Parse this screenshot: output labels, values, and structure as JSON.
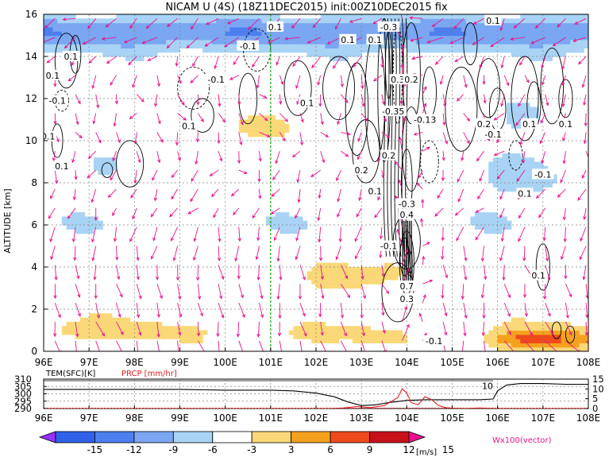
{
  "title": "NICAM U (4S) (18Z11DEC2015) init:00Z10DEC2015 fix",
  "colors": {
    "background": "#ffffff",
    "vector": "#e8128c",
    "contour": "#000000",
    "marker_line": "#22aa22",
    "temperature_line": "#000000",
    "precip_line": "#e02020"
  },
  "chart_data": [
    {
      "type": "heatmap",
      "name": "zonal-wind-cross-section",
      "ylabel": "ALTITUDE [km]",
      "x_ticks": [
        "96E",
        "97E",
        "98E",
        "99E",
        "100E",
        "101E",
        "102E",
        "103E",
        "104E",
        "105E",
        "106E",
        "107E",
        "108E"
      ],
      "y_ticks": [
        "0",
        "2",
        "4",
        "6",
        "8",
        "10",
        "12",
        "14",
        "16"
      ],
      "xlim": [
        96,
        108
      ],
      "ylim": [
        0,
        16
      ],
      "grid": true,
      "marker_lon": 101,
      "color_levels": [
        -15,
        -12,
        -9,
        -6,
        -3,
        3,
        6,
        9,
        12,
        15
      ],
      "colorbar_labels": [
        "-15",
        "-12",
        "-9",
        "-6",
        "-3",
        "3",
        "6",
        "9",
        "12",
        "15"
      ],
      "colorbar_colors": [
        "#9b30ff",
        "#2f62e8",
        "#4d7fee",
        "#7aa6f2",
        "#a8d3f5",
        "#ffffff",
        "#fad878",
        "#f4a21e",
        "#ef4a1c",
        "#c8101a",
        "#e8128c"
      ],
      "colorbar_unit": "[m/s]",
      "vector_legend": "Wx100(vector)",
      "contour_labels": [
        {
          "text": "0.1",
          "lon": 96.6,
          "alt": 14.0
        },
        {
          "text": "0.1",
          "lon": 96.2,
          "alt": 13.1
        },
        {
          "text": "-0.1",
          "lon": 96.3,
          "alt": 11.9
        },
        {
          "text": "0.1",
          "lon": 96.1,
          "alt": 10.2
        },
        {
          "text": "0.1",
          "lon": 96.4,
          "alt": 8.8
        },
        {
          "text": "-0.1",
          "lon": 99.8,
          "alt": 12.9
        },
        {
          "text": "0.1",
          "lon": 99.2,
          "alt": 10.7
        },
        {
          "text": "0.1",
          "lon": 101.1,
          "alt": 15.4
        },
        {
          "text": "-0.1",
          "lon": 100.5,
          "alt": 14.5
        },
        {
          "text": "0.1",
          "lon": 101.8,
          "alt": 11.8
        },
        {
          "text": "0.1",
          "lon": 102.7,
          "alt": 14.8
        },
        {
          "text": "0.1",
          "lon": 103.3,
          "alt": 14.8
        },
        {
          "text": "-0.3",
          "lon": 103.6,
          "alt": 15.4
        },
        {
          "text": "0.3",
          "lon": 103.8,
          "alt": 12.9
        },
        {
          "text": "0.2",
          "lon": 104.1,
          "alt": 12.9
        },
        {
          "text": "-0.35",
          "lon": 103.7,
          "alt": 11.4
        },
        {
          "text": "-0.13",
          "lon": 104.4,
          "alt": 11.0
        },
        {
          "text": "0.2",
          "lon": 103.6,
          "alt": 9.3
        },
        {
          "text": "0.2",
          "lon": 103.0,
          "alt": 8.6
        },
        {
          "text": "0.1",
          "lon": 103.3,
          "alt": 7.6
        },
        {
          "text": "-0.3",
          "lon": 104.0,
          "alt": 7.0
        },
        {
          "text": "0.4",
          "lon": 104.0,
          "alt": 6.5
        },
        {
          "text": "-0.1",
          "lon": 103.6,
          "alt": 5.0
        },
        {
          "text": "0.7",
          "lon": 104.0,
          "alt": 3.1
        },
        {
          "text": "0.3",
          "lon": 104.0,
          "alt": 2.5
        },
        {
          "text": "-0.1",
          "lon": 104.6,
          "alt": 0.5
        },
        {
          "text": "0.2",
          "lon": 105.7,
          "alt": 10.8
        },
        {
          "text": "-0.1",
          "lon": 105.9,
          "alt": 10.3
        },
        {
          "text": "0.1",
          "lon": 106.7,
          "alt": 10.8
        },
        {
          "text": "0.1",
          "lon": 107.5,
          "alt": 10.8
        },
        {
          "text": "-0.1",
          "lon": 107.0,
          "alt": 8.4
        },
        {
          "text": "0.1",
          "lon": 106.6,
          "alt": 7.5
        },
        {
          "text": "0.1",
          "lon": 106.9,
          "alt": 3.6
        },
        {
          "text": "0.1",
          "lon": 105.9,
          "alt": 15.7
        }
      ]
    },
    {
      "type": "line",
      "name": "surface-temperature-and-precipitation",
      "label_left": "TEM(SFC)[K]",
      "label_right": "PRCP [mm/hr]",
      "x_ticks": [
        "96E",
        "97E",
        "98E",
        "99E",
        "100E",
        "101E",
        "102E",
        "103E",
        "104E",
        "105E",
        "106E",
        "107E",
        "108E"
      ],
      "xlim": [
        96,
        108
      ],
      "temperature_ticks": [
        "290",
        "295",
        "300",
        "305",
        "310"
      ],
      "temperature_lim": [
        290,
        310
      ],
      "precip_ticks": [
        "0",
        "5",
        "10",
        "15"
      ],
      "precip_lim": [
        0,
        15
      ],
      "peak_label": "10",
      "peak_label_lon": 105.9,
      "series": [
        {
          "name": "TEM(SFC)[K]",
          "axis": "left",
          "x": [
            96,
            97,
            98,
            99,
            100,
            101,
            101.5,
            102,
            102.4,
            102.7,
            103.0,
            103.3,
            103.6,
            104.0,
            104.4,
            104.8,
            105.2,
            105.6,
            105.9,
            106.0,
            106.2,
            106.5,
            107,
            107.5,
            108
          ],
          "y": [
            303,
            303,
            303,
            303,
            302.5,
            302.5,
            302,
            300.5,
            298,
            294.5,
            292,
            292.5,
            294,
            295.5,
            296,
            296,
            296,
            296,
            296.5,
            302,
            306,
            307,
            307,
            306.5,
            306.5
          ]
        },
        {
          "name": "PRCP [mm/hr]",
          "axis": "right",
          "x": [
            96,
            102.3,
            102.6,
            102.9,
            103.2,
            103.5,
            103.8,
            103.9,
            104.0,
            104.1,
            104.25,
            104.4,
            104.55,
            104.7,
            104.85,
            105.0,
            105.3,
            105.6,
            106,
            108
          ],
          "y": [
            0,
            0,
            0.3,
            1.0,
            0.5,
            1.5,
            5.5,
            10.0,
            8.0,
            3.0,
            2.0,
            6.0,
            4.5,
            1.5,
            0.5,
            0.2,
            0.0,
            0.3,
            0,
            0
          ]
        }
      ]
    }
  ]
}
